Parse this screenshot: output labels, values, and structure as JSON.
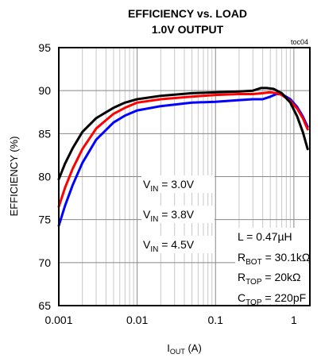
{
  "chart_data": {
    "type": "line",
    "title": [
      "EFFICIENCY vs. LOAD",
      "1.0V OUTPUT"
    ],
    "figure_id": "toc04",
    "xlabel": {
      "main": "I",
      "sub": "OUT",
      "tail": " (A)"
    },
    "ylabel": "EFFICIENCY (%)",
    "xscale": "log",
    "xlim": [
      0.001,
      1.6
    ],
    "ylim": [
      65,
      95
    ],
    "xticks": [
      {
        "value": 0.001,
        "label": "0.001"
      },
      {
        "value": 0.01,
        "label": "0.01"
      },
      {
        "value": 0.1,
        "label": "0.1"
      },
      {
        "value": 1,
        "label": "1"
      }
    ],
    "yticks": [
      {
        "value": 65,
        "label": "65"
      },
      {
        "value": 70,
        "label": "70"
      },
      {
        "value": 75,
        "label": "75"
      },
      {
        "value": 80,
        "label": "80"
      },
      {
        "value": 85,
        "label": "85"
      },
      {
        "value": 90,
        "label": "90"
      },
      {
        "value": 95,
        "label": "95"
      }
    ],
    "grid": {
      "x_minor": true,
      "y_major": true
    },
    "series": [
      {
        "name": "V_IN = 3.0V",
        "label": {
          "main": "V",
          "sub": "IN",
          "tail": " = 3.0V"
        },
        "color": "#000000",
        "x": [
          0.001,
          0.0012,
          0.0015,
          0.002,
          0.003,
          0.005,
          0.007,
          0.01,
          0.02,
          0.05,
          0.1,
          0.2,
          0.3,
          0.38,
          0.45,
          0.55,
          0.7,
          0.9,
          1.1,
          1.3,
          1.5
        ],
        "y": [
          79.7,
          81.5,
          83.3,
          85.2,
          86.8,
          88.0,
          88.6,
          89.0,
          89.4,
          89.7,
          89.8,
          89.9,
          90.0,
          90.3,
          90.3,
          90.2,
          89.7,
          88.6,
          87.0,
          85.2,
          83.2
        ]
      },
      {
        "name": "V_IN = 3.8V",
        "label": {
          "main": "V",
          "sub": "IN",
          "tail": " = 3.8V"
        },
        "color": "#ff0000",
        "x": [
          0.001,
          0.0012,
          0.0015,
          0.002,
          0.003,
          0.005,
          0.007,
          0.01,
          0.02,
          0.05,
          0.1,
          0.2,
          0.3,
          0.4,
          0.5,
          0.6,
          0.7,
          0.9,
          1.1,
          1.3,
          1.5
        ],
        "y": [
          76.5,
          78.7,
          80.9,
          83.2,
          85.6,
          87.3,
          88.0,
          88.6,
          89.0,
          89.3,
          89.5,
          89.6,
          89.6,
          89.7,
          89.8,
          89.7,
          89.5,
          88.8,
          87.9,
          86.8,
          85.5
        ]
      },
      {
        "name": "V_IN = 4.5V",
        "label": {
          "main": "V",
          "sub": "IN",
          "tail": " = 4.5V"
        },
        "color": "#0000ff",
        "x": [
          0.001,
          0.0012,
          0.0015,
          0.002,
          0.003,
          0.005,
          0.007,
          0.01,
          0.02,
          0.05,
          0.1,
          0.2,
          0.3,
          0.4,
          0.5,
          0.6,
          0.7,
          0.9,
          1.1,
          1.3,
          1.5
        ],
        "y": [
          74.3,
          76.6,
          79.0,
          81.6,
          84.3,
          86.3,
          87.1,
          87.7,
          88.2,
          88.6,
          88.7,
          88.9,
          89.0,
          89.0,
          89.3,
          89.6,
          89.6,
          89.0,
          88.1,
          87.0,
          85.8
        ]
      }
    ],
    "annotations": [
      {
        "main": "L = 0.47µH",
        "sub": "",
        "tail": ""
      },
      {
        "main": "R",
        "sub": "BOT",
        "tail": " = 30.1kΩ"
      },
      {
        "main": "R",
        "sub": "TOP",
        "tail": " = 20kΩ"
      },
      {
        "main": "C",
        "sub": "TOP",
        "tail": " = 220pF"
      }
    ]
  }
}
